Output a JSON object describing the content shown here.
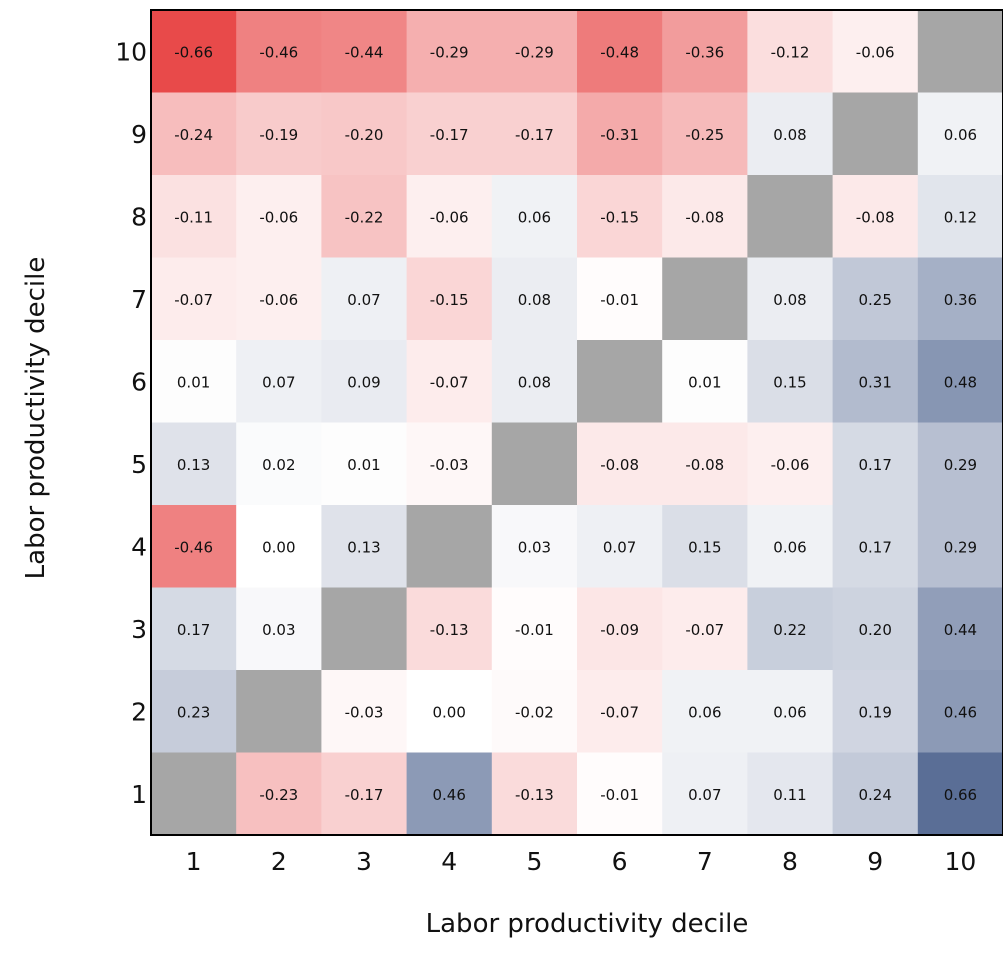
{
  "chart_data": {
    "type": "heatmap",
    "title": "",
    "xlabel": "Labor productivity decile",
    "ylabel": "Labor productivity decile",
    "x_categories": [
      "1",
      "2",
      "3",
      "4",
      "5",
      "6",
      "7",
      "8",
      "9",
      "10"
    ],
    "y_categories": [
      "1",
      "2",
      "3",
      "4",
      "5",
      "6",
      "7",
      "8",
      "9",
      "10"
    ],
    "color_scale": {
      "negative": "#e84a4a",
      "zero": "#ffffff",
      "positive": "#5a6e96",
      "missing": "#a6a6a6",
      "range": [
        -0.66,
        0.66
      ]
    },
    "rows": [
      {
        "y": "10",
        "values": [
          -0.66,
          -0.46,
          -0.44,
          -0.29,
          -0.29,
          -0.48,
          -0.36,
          -0.12,
          -0.06,
          null
        ],
        "labels": [
          "-0.66",
          "-0.46",
          "-0.44",
          "-0.29",
          "-0.29",
          "-0.48",
          "-0.36",
          "-0.12",
          "-0.06",
          ""
        ]
      },
      {
        "y": "9",
        "values": [
          -0.24,
          -0.19,
          -0.2,
          -0.17,
          -0.17,
          -0.31,
          -0.25,
          0.08,
          null,
          0.06
        ],
        "labels": [
          "-0.24",
          "-0.19",
          "-0.20",
          "-0.17",
          "-0.17",
          "-0.31",
          "-0.25",
          "0.08",
          "",
          "0.06"
        ]
      },
      {
        "y": "8",
        "values": [
          -0.11,
          -0.06,
          -0.22,
          -0.06,
          0.06,
          -0.15,
          -0.08,
          null,
          -0.08,
          0.12
        ],
        "labels": [
          "-0.11",
          "-0.06",
          "-0.22",
          "-0.06",
          "0.06",
          "-0.15",
          "-0.08",
          "",
          "-0.08",
          "0.12"
        ]
      },
      {
        "y": "7",
        "values": [
          -0.07,
          -0.06,
          0.07,
          -0.15,
          0.08,
          -0.01,
          null,
          0.08,
          0.25,
          0.36
        ],
        "labels": [
          "-0.07",
          "-0.06",
          "0.07",
          "-0.15",
          "0.08",
          "-0.01",
          "",
          "0.08",
          "0.25",
          "0.36"
        ]
      },
      {
        "y": "6",
        "values": [
          0.01,
          0.07,
          0.09,
          -0.07,
          0.08,
          null,
          0.01,
          0.15,
          0.31,
          0.48
        ],
        "labels": [
          "0.01",
          "0.07",
          "0.09",
          "-0.07",
          "0.08",
          "",
          "0.01",
          "0.15",
          "0.31",
          "0.48"
        ]
      },
      {
        "y": "5",
        "values": [
          0.13,
          0.02,
          0.01,
          -0.03,
          null,
          -0.08,
          -0.08,
          -0.06,
          0.17,
          0.29
        ],
        "labels": [
          "0.13",
          "0.02",
          "0.01",
          "-0.03",
          "",
          "-0.08",
          "-0.08",
          "-0.06",
          "0.17",
          "0.29"
        ]
      },
      {
        "y": "4",
        "values": [
          -0.46,
          0.0,
          0.13,
          null,
          0.03,
          0.07,
          0.15,
          0.06,
          0.17,
          0.29
        ],
        "labels": [
          "-0.46",
          "0.00",
          "0.13",
          "",
          "0.03",
          "0.07",
          "0.15",
          "0.06",
          "0.17",
          "0.29"
        ]
      },
      {
        "y": "3",
        "values": [
          0.17,
          0.03,
          null,
          -0.13,
          -0.01,
          -0.09,
          -0.07,
          0.22,
          0.2,
          0.44
        ],
        "labels": [
          "0.17",
          "0.03",
          "",
          "-0.13",
          "-0.01",
          "-0.09",
          "-0.07",
          "0.22",
          "0.20",
          "0.44"
        ]
      },
      {
        "y": "2",
        "values": [
          0.23,
          null,
          -0.03,
          0.0,
          -0.02,
          -0.07,
          0.06,
          0.06,
          0.19,
          0.46
        ],
        "labels": [
          "0.23",
          "",
          "-0.03",
          "0.00",
          "-0.02",
          "-0.07",
          "0.06",
          "0.06",
          "0.19",
          "0.46"
        ]
      },
      {
        "y": "1",
        "values": [
          null,
          -0.23,
          -0.17,
          0.46,
          -0.13,
          -0.01,
          0.07,
          0.11,
          0.24,
          0.66
        ],
        "labels": [
          "",
          "-0.23",
          "-0.17",
          "0.46",
          "-0.13",
          "-0.01",
          "0.07",
          "0.11",
          "0.24",
          "0.66"
        ]
      }
    ]
  }
}
